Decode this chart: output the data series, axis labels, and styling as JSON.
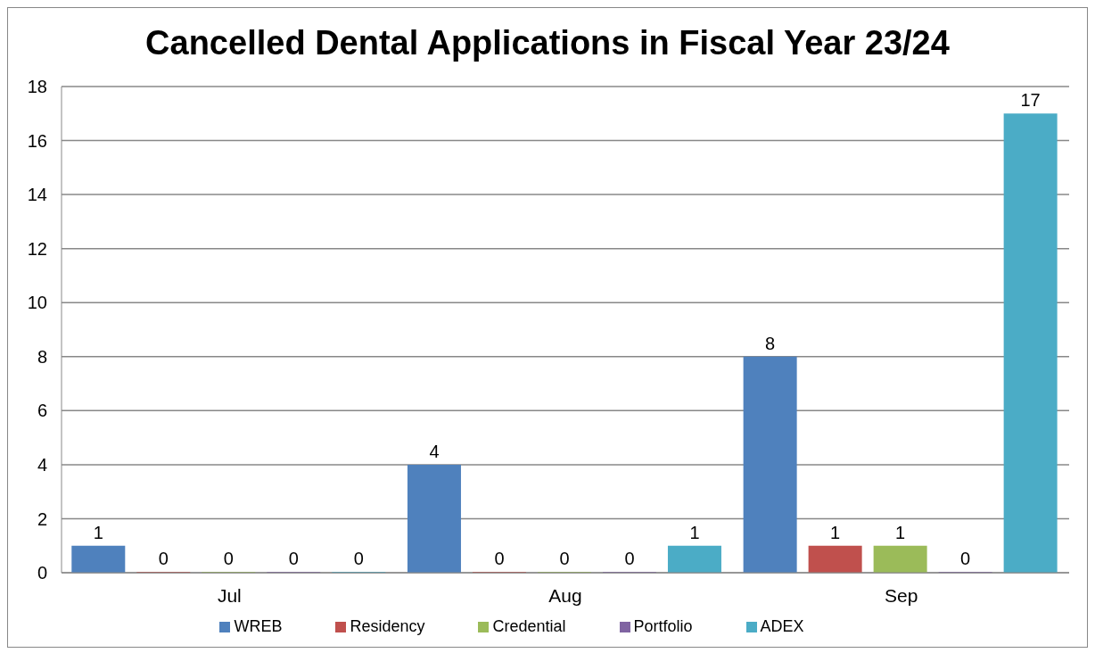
{
  "chart_data": {
    "type": "bar",
    "title": "Cancelled Dental Applications in Fiscal Year 23/24",
    "categories": [
      "Jul",
      "Aug",
      "Sep"
    ],
    "series": [
      {
        "name": "WREB",
        "color": "#4f81bd",
        "values": [
          1,
          4,
          8
        ]
      },
      {
        "name": "Residency",
        "color": "#c0504d",
        "values": [
          0,
          0,
          1
        ]
      },
      {
        "name": "Credential",
        "color": "#9bbb59",
        "values": [
          0,
          0,
          1
        ]
      },
      {
        "name": "Portfolio",
        "color": "#8064a2",
        "values": [
          0,
          0,
          0
        ]
      },
      {
        "name": "ADEX",
        "color": "#4bacc6",
        "values": [
          0,
          1,
          17
        ]
      }
    ],
    "ylim": [
      0,
      18
    ],
    "yticks": [
      0,
      2,
      4,
      6,
      8,
      10,
      12,
      14,
      16,
      18
    ],
    "grid": "y",
    "legend": "bottom",
    "data_labels": true
  }
}
